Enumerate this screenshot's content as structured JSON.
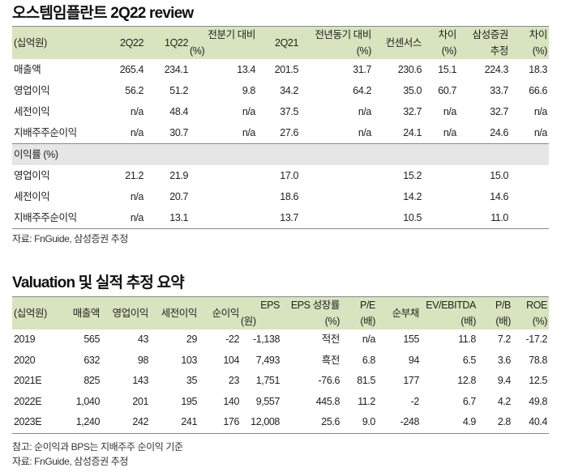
{
  "review": {
    "title": "오스템임플란트 2Q22 review",
    "header_row1": [
      "",
      "",
      "",
      "전분기 대비",
      "",
      "전년동기 대비",
      "",
      "차이",
      "삼성증권",
      "차이"
    ],
    "header_row2": [
      "(십억원)",
      "2Q22",
      "1Q22",
      "(%)",
      "2Q21",
      "(%)",
      "컨센서스",
      "(%)",
      "추정",
      "(%)"
    ],
    "rows": [
      [
        "매출액",
        "265.4",
        "234.1",
        "13.4",
        "201.5",
        "31.7",
        "230.6",
        "15.1",
        "224.3",
        "18.3"
      ],
      [
        "영업이익",
        "56.2",
        "51.2",
        "9.8",
        "34.2",
        "64.2",
        "35.0",
        "60.7",
        "33.7",
        "66.6"
      ],
      [
        "세전이익",
        "n/a",
        "48.4",
        "n/a",
        "37.5",
        "n/a",
        "32.7",
        "n/a",
        "32.7",
        "n/a"
      ],
      [
        "지배주주순이익",
        "n/a",
        "30.7",
        "n/a",
        "27.6",
        "n/a",
        "24.1",
        "n/a",
        "24.6",
        "n/a"
      ]
    ],
    "margin_label": "이익률 (%)",
    "margin_rows": [
      [
        "영업이익",
        "21.2",
        "21.9",
        "",
        "17.0",
        "",
        "15.2",
        "",
        "15.0",
        ""
      ],
      [
        "세전이익",
        "n/a",
        "20.7",
        "",
        "18.6",
        "",
        "14.2",
        "",
        "14.6",
        ""
      ],
      [
        "지배주주순이익",
        "n/a",
        "13.1",
        "",
        "13.7",
        "",
        "10.5",
        "",
        "11.0",
        ""
      ]
    ],
    "source": "자료: FnGuide, 삼성증권 추정"
  },
  "valuation": {
    "title": "Valuation 및 실적 추정 요약",
    "header_row1": [
      "",
      "",
      "",
      "",
      "",
      "EPS",
      "EPS 성장률",
      "P/E",
      "",
      "EV/EBITDA",
      "P/B",
      "ROE"
    ],
    "header_row2": [
      "(십억원)",
      "매출액",
      "영업이익",
      "세전이익",
      "순이익",
      "(원)",
      "(%)",
      "(배)",
      "순부채",
      "(배)",
      "(배)",
      "(%)"
    ],
    "rows": [
      [
        "2019",
        "565",
        "43",
        "29",
        "-22",
        "-1,138",
        "적전",
        "n/a",
        "155",
        "11.8",
        "7.2",
        "-17.2"
      ],
      [
        "2020",
        "632",
        "98",
        "103",
        "104",
        "7,493",
        "흑전",
        "6.8",
        "94",
        "6.5",
        "3.6",
        "78.8"
      ],
      [
        "2021E",
        "825",
        "143",
        "35",
        "23",
        "1,751",
        "-76.6",
        "81.5",
        "177",
        "12.8",
        "9.4",
        "12.5"
      ],
      [
        "2022E",
        "1,040",
        "201",
        "195",
        "140",
        "9,557",
        "445.8",
        "11.2",
        "-2",
        "6.7",
        "4.2",
        "49.8"
      ],
      [
        "2023E",
        "1,240",
        "242",
        "241",
        "176",
        "12,008",
        "25.6",
        "9.0",
        "-248",
        "4.9",
        "2.8",
        "40.4"
      ]
    ],
    "note": "참고: 순이익과 BPS는 지배주주 순이익 기준",
    "source": "자료: FnGuide, 삼성증권 추정"
  },
  "colors": {
    "header_bg": "#d7e4bd",
    "subheader_bg": "#e6e6e6"
  }
}
